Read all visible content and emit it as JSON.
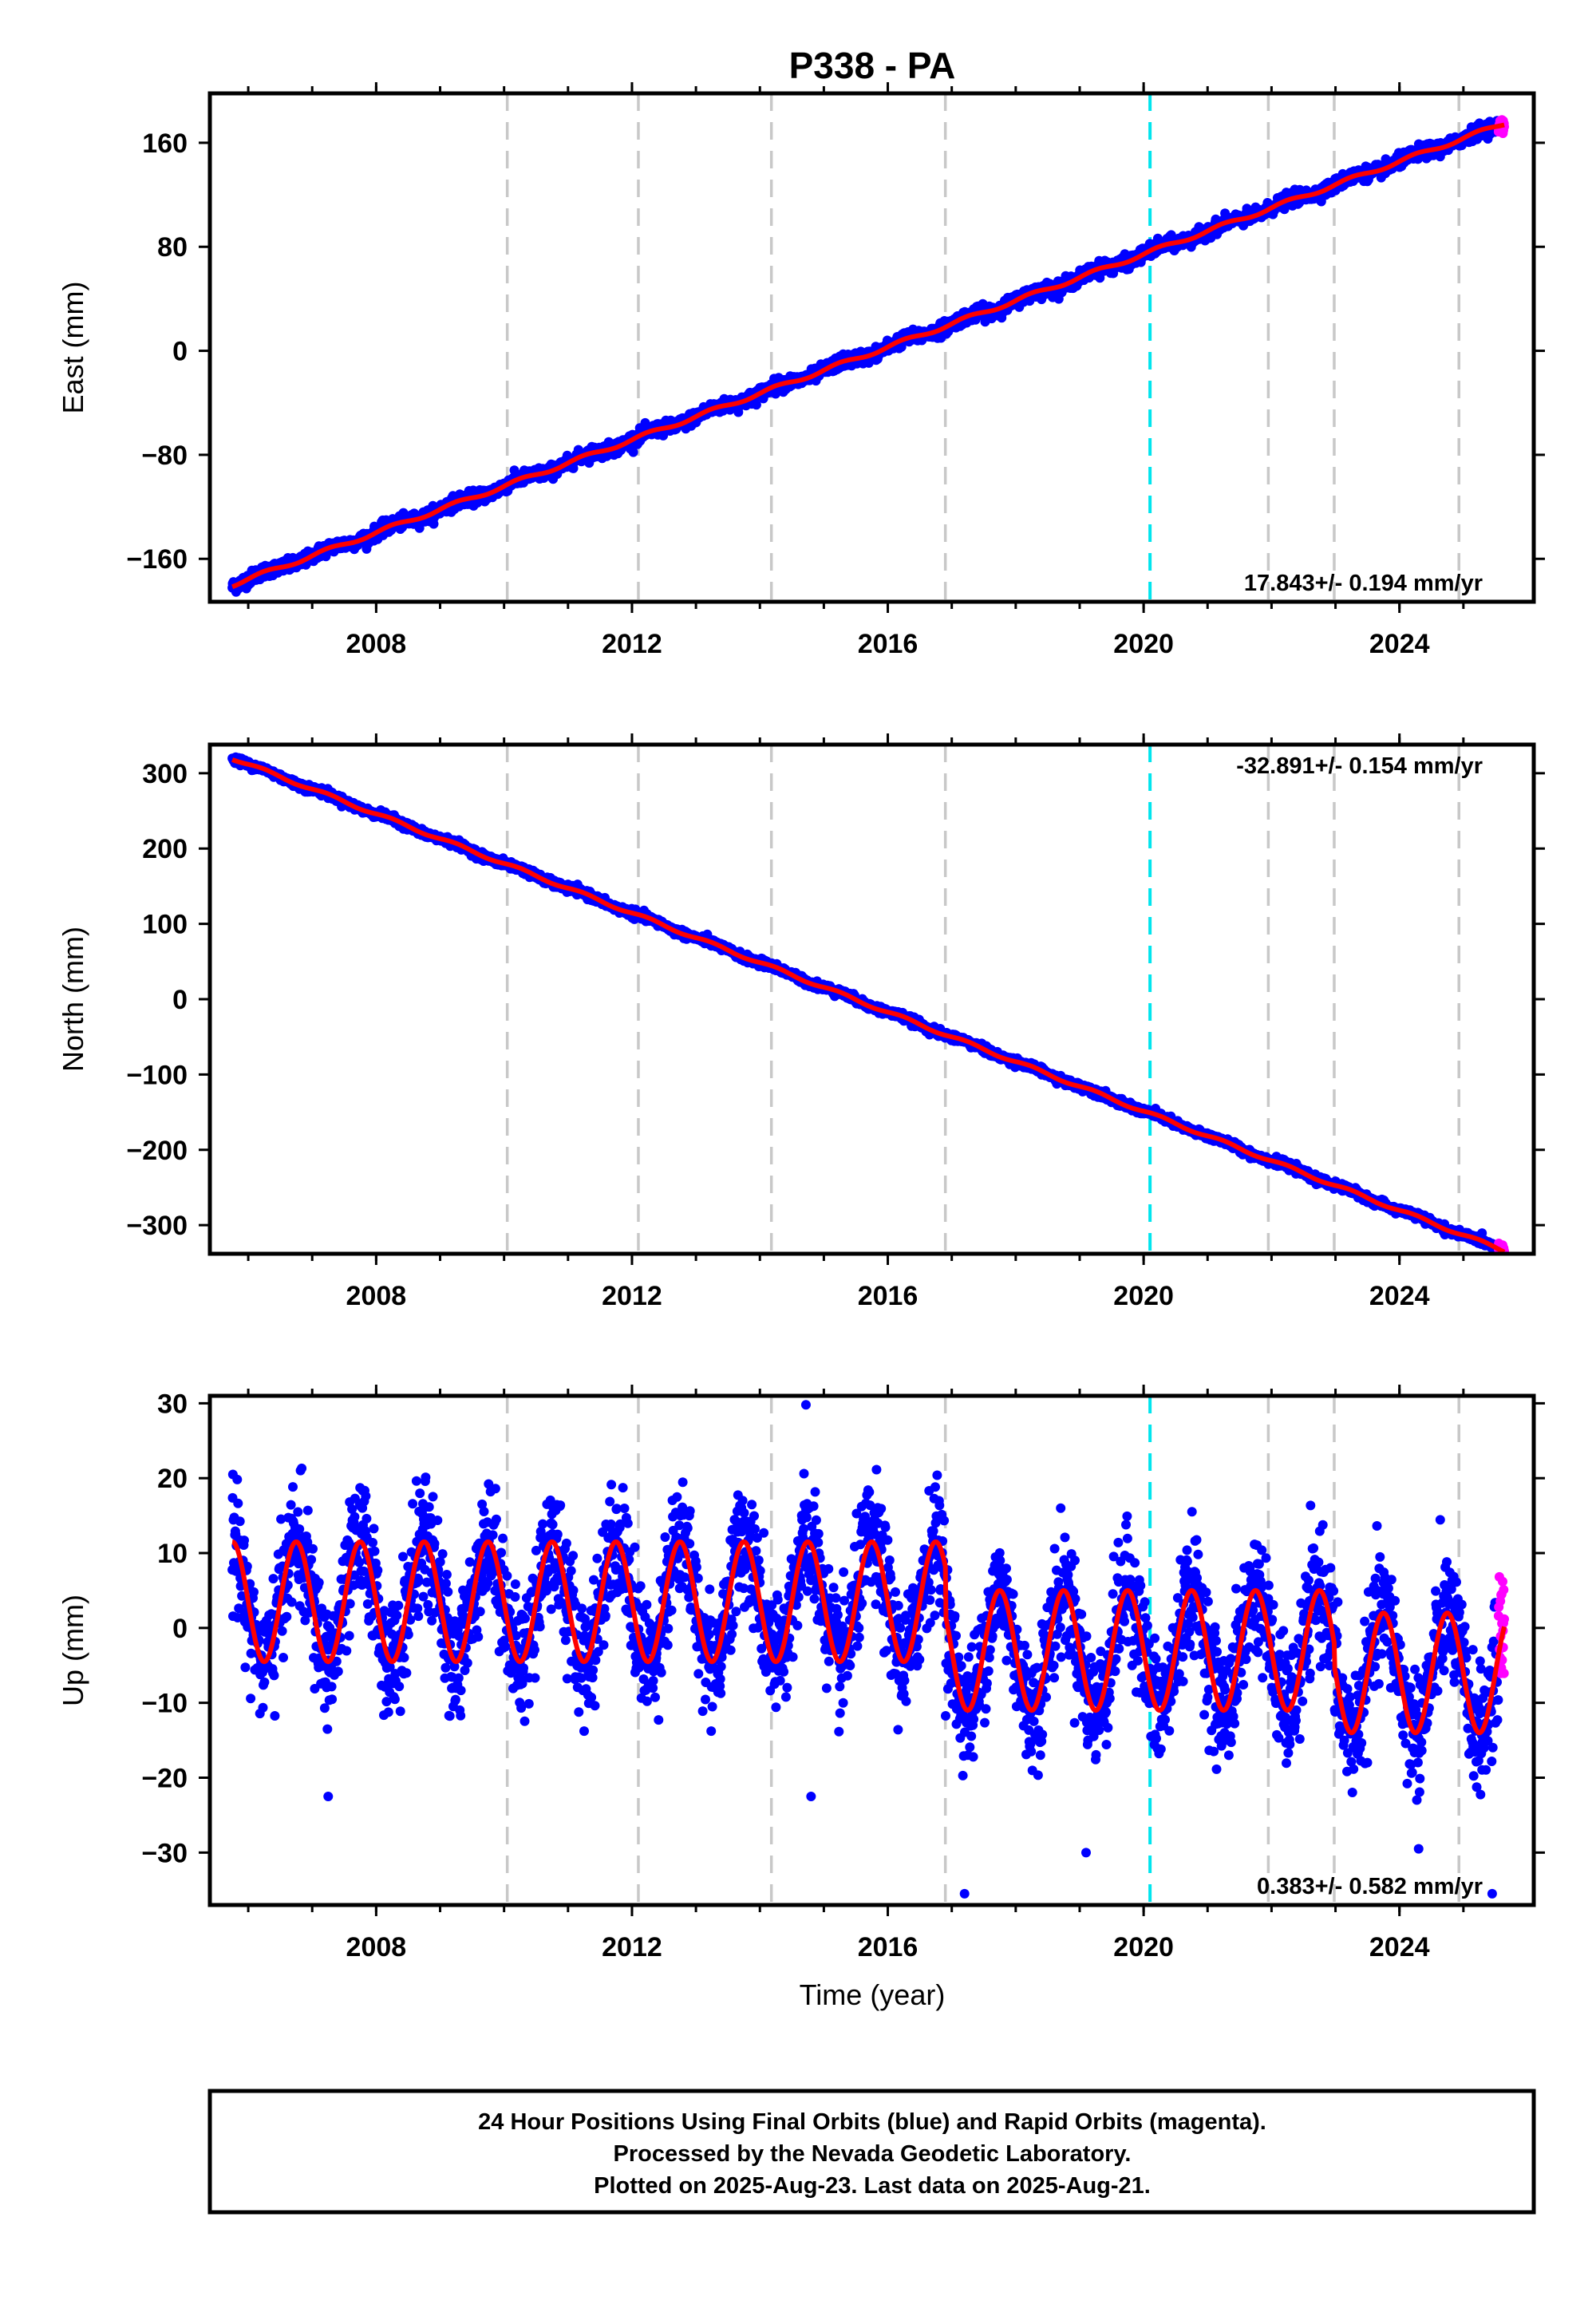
{
  "title": "P338 - PA",
  "colors": {
    "final_orbits": "#0000ff",
    "rapid_orbits": "#ff00ff",
    "model_fit": "#ff0000",
    "event_line": "#00e5ee",
    "grid_line": "#c8c8c8",
    "frame": "#000000"
  },
  "chart_data": [
    {
      "type": "scatter",
      "panel": "east",
      "ylabel": "East (mm)",
      "xlabel": "",
      "xlim": [
        2005.4,
        2026.1
      ],
      "ylim": [
        -193,
        198
      ],
      "xticks": [
        2008,
        2012,
        2016,
        2020,
        2024
      ],
      "yticks": [
        -160,
        -80,
        0,
        80,
        160
      ],
      "rate_label": "17.843+/- 0.194 mm/yr",
      "rate_position": "bottom-right",
      "vertical_dashed_lines": [
        2010.05,
        2012.1,
        2014.18,
        2016.9,
        2021.95,
        2022.98,
        2024.93
      ],
      "event_line": 2020.1,
      "series": [
        {
          "role": "final",
          "start_year": 2005.75,
          "end_year": 2025.55,
          "start_value": -180,
          "rate": 17.843,
          "scatter": 2.5
        },
        {
          "role": "rapid",
          "start_year": 2025.55,
          "end_year": 2025.64,
          "start_value": 180,
          "rate": 17.843,
          "scatter": 3
        },
        {
          "role": "model",
          "start_year": 2005.75,
          "end_year": 2025.64,
          "start_value": -180,
          "rate": 17.843,
          "seasonal_amplitude": 1.5
        }
      ]
    },
    {
      "type": "scatter",
      "panel": "north",
      "ylabel": "North (mm)",
      "xlabel": "",
      "xlim": [
        2005.4,
        2026.1
      ],
      "ylim": [
        -338,
        338
      ],
      "xticks": [
        2008,
        2012,
        2016,
        2020,
        2024
      ],
      "yticks": [
        -300,
        -200,
        -100,
        0,
        100,
        200,
        300
      ],
      "rate_label": "-32.891+/- 0.154 mm/yr",
      "rate_position": "top-right",
      "vertical_dashed_lines": [
        2010.05,
        2012.1,
        2014.18,
        2016.9,
        2021.95,
        2022.98,
        2024.93
      ],
      "event_line": 2020.1,
      "series": [
        {
          "role": "final",
          "start_year": 2005.75,
          "end_year": 2025.55,
          "start_value": 320,
          "rate": -32.891,
          "scatter": 2.5
        },
        {
          "role": "rapid",
          "start_year": 2025.55,
          "end_year": 2025.64,
          "start_value": -313,
          "rate": -32.891,
          "scatter": 3
        },
        {
          "role": "model",
          "start_year": 2005.75,
          "end_year": 2025.64,
          "start_value": 320,
          "rate": -32.891,
          "seasonal_amplitude": 2
        }
      ]
    },
    {
      "type": "scatter",
      "panel": "up",
      "ylabel": "Up (mm)",
      "xlabel": "Time (year)",
      "xlim": [
        2005.4,
        2026.1
      ],
      "ylim": [
        -37,
        31
      ],
      "xticks": [
        2008,
        2012,
        2016,
        2020,
        2024
      ],
      "yticks": [
        -30,
        -20,
        -10,
        0,
        10,
        20,
        30
      ],
      "rate_label": "0.383+/- 0.582 mm/yr",
      "rate_position": "bottom-right",
      "vertical_dashed_lines": [
        2010.05,
        2012.1,
        2014.18,
        2016.9,
        2021.95,
        2022.98,
        2024.93
      ],
      "event_line": 2020.1,
      "segment_offsets": [
        {
          "from": 2005.75,
          "to": 2016.9,
          "mean": 3.5
        },
        {
          "from": 2016.9,
          "to": 2022.98,
          "mean": -3
        },
        {
          "from": 2022.98,
          "to": 2025.64,
          "mean": -6
        }
      ],
      "seasonal_amplitude": 8,
      "seasonal_peak_fraction": 0.75,
      "series": [
        {
          "role": "final",
          "start_year": 2005.75,
          "end_year": 2025.55,
          "scatter": 4
        },
        {
          "role": "rapid",
          "start_year": 2025.55,
          "end_year": 2025.64,
          "scatter": 4
        },
        {
          "role": "model",
          "start_year": 2005.75,
          "end_year": 2025.64
        }
      ],
      "outliers": [
        [
          2005.76,
          20.5
        ],
        [
          2007.25,
          -22.5
        ],
        [
          2014.8,
          -22.5
        ],
        [
          2017.2,
          -35.5
        ],
        [
          2019.1,
          -30
        ],
        [
          2024.3,
          -29.5
        ],
        [
          2025.45,
          -35.5
        ],
        [
          2014.72,
          29.8
        ]
      ]
    }
  ],
  "footer": {
    "line1": "24 Hour Positions Using Final Orbits (blue) and Rapid Orbits (magenta).",
    "line2": "Processed by the Nevada Geodetic Laboratory.",
    "line3": "Plotted on 2025-Aug-23. Last data on 2025-Aug-21."
  }
}
